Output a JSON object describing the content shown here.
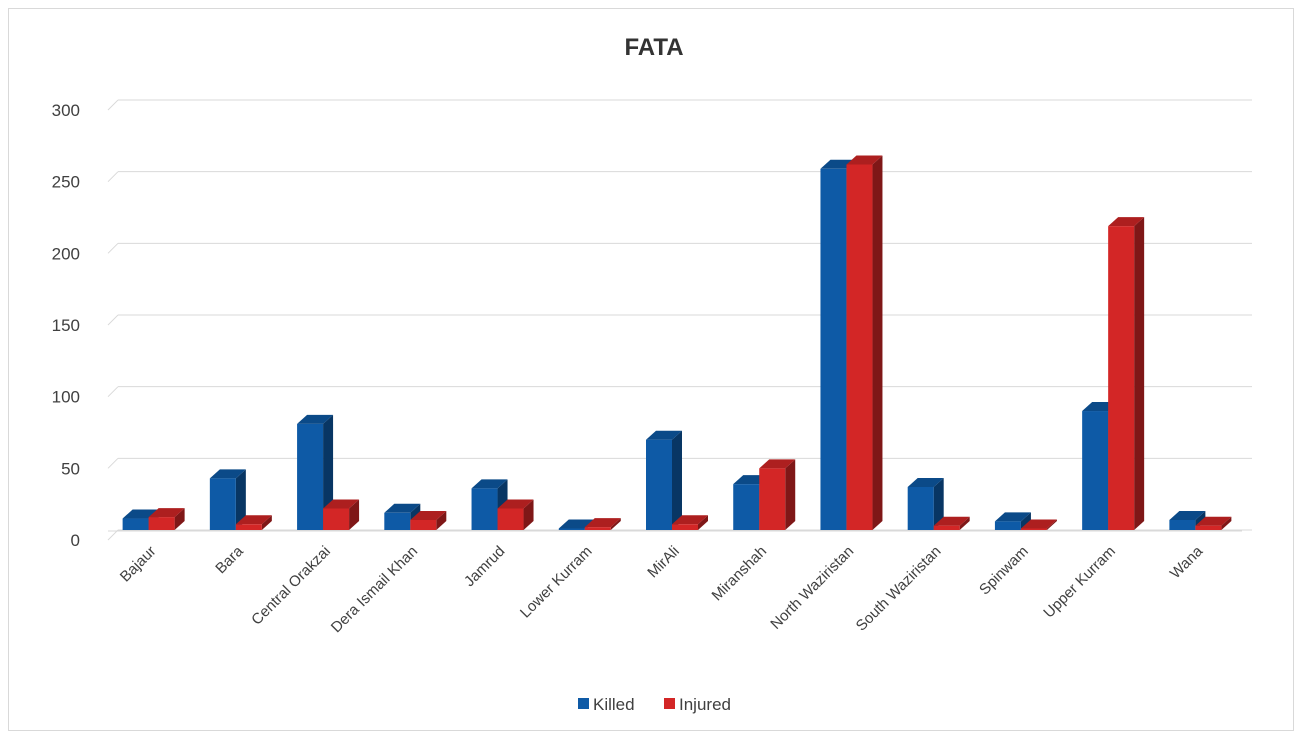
{
  "chart_data": {
    "type": "bar",
    "title": "FATA",
    "xlabel": "",
    "ylabel": "",
    "ylim": [
      0,
      300
    ],
    "yticks": [
      0,
      50,
      100,
      150,
      200,
      250,
      300
    ],
    "grid": true,
    "legend_position": "bottom",
    "categories": [
      "Bajaur",
      "Bara",
      "Central Orakzai",
      "Dera Ismail Khan",
      "Jamrud",
      "Lower Kurram",
      "MirAli",
      "Miranshah",
      "North Waziristan",
      "South Waziristan",
      "Spinwam",
      "Upper Kurram",
      "Wana"
    ],
    "series": [
      {
        "name": "Killed",
        "color": "#0e5aa6",
        "values": [
          8,
          36,
          74,
          12,
          29,
          1,
          63,
          32,
          252,
          30,
          6,
          83,
          7
        ]
      },
      {
        "name": "Injured",
        "color": "#d32626",
        "values": [
          9,
          4,
          15,
          7,
          15,
          2,
          4,
          43,
          255,
          3,
          1,
          212,
          3
        ]
      }
    ]
  }
}
